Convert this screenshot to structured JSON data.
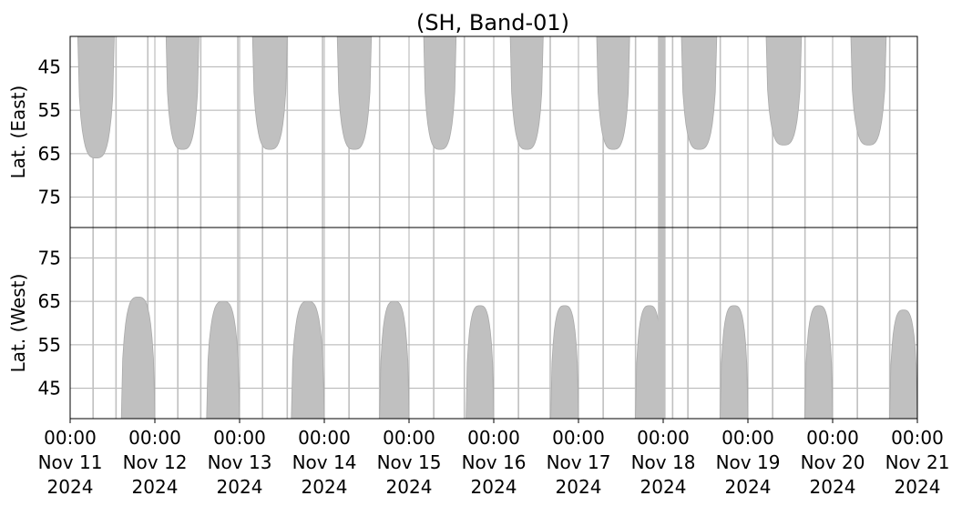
{
  "chart_data": {
    "type": "area",
    "title": "(SH, Band-01)",
    "fill_color": "#c0c0c0",
    "grid_color": "#b0b0b0",
    "grid": true,
    "x_range": [
      "2024-11-11 00:00",
      "2024-11-21 00:00"
    ],
    "x_ticks": [
      {
        "time": "00:00",
        "date": "Nov 11",
        "year": "2024"
      },
      {
        "time": "00:00",
        "date": "Nov 12",
        "year": "2024"
      },
      {
        "time": "00:00",
        "date": "Nov 13",
        "year": "2024"
      },
      {
        "time": "00:00",
        "date": "Nov 14",
        "year": "2024"
      },
      {
        "time": "00:00",
        "date": "Nov 15",
        "year": "2024"
      },
      {
        "time": "00:00",
        "date": "Nov 16",
        "year": "2024"
      },
      {
        "time": "00:00",
        "date": "Nov 17",
        "year": "2024"
      },
      {
        "time": "00:00",
        "date": "Nov 18",
        "year": "2024"
      },
      {
        "time": "00:00",
        "date": "Nov 19",
        "year": "2024"
      },
      {
        "time": "00:00",
        "date": "Nov 20",
        "year": "2024"
      },
      {
        "time": "00:00",
        "date": "Nov 21",
        "year": "2024"
      }
    ],
    "panels": [
      {
        "name": "east",
        "ylabel": "Lat. (East)",
        "yticks": [
          45,
          55,
          65,
          75
        ],
        "ylim": [
          38,
          82
        ],
        "inverted": true,
        "coverage": [
          {
            "start": "2024-11-11 02:10",
            "end": "2024-11-11 12:30",
            "max_lat": 66
          },
          {
            "start": "2024-11-12 03:10",
            "end": "2024-11-12 12:30",
            "max_lat": 64
          },
          {
            "start": "2024-11-13 03:40",
            "end": "2024-11-13 13:30",
            "max_lat": 64
          },
          {
            "start": "2024-11-14 03:40",
            "end": "2024-11-14 13:20",
            "max_lat": 64
          },
          {
            "start": "2024-11-15 04:10",
            "end": "2024-11-15 13:20",
            "max_lat": 64
          },
          {
            "start": "2024-11-16 04:40",
            "end": "2024-11-16 14:00",
            "max_lat": 64
          },
          {
            "start": "2024-11-17 05:10",
            "end": "2024-11-17 14:30",
            "max_lat": 64
          },
          {
            "start": "2024-11-18 05:10",
            "end": "2024-11-18 15:10",
            "max_lat": 64
          },
          {
            "start": "2024-11-19 05:10",
            "end": "2024-11-19 15:10",
            "max_lat": 63
          },
          {
            "start": "2024-11-20 05:10",
            "end": "2024-11-20 15:10",
            "max_lat": 63
          }
        ]
      },
      {
        "name": "west",
        "ylabel": "Lat. (West)",
        "yticks": [
          45,
          55,
          65,
          75
        ],
        "ylim": [
          38,
          82
        ],
        "inverted": false,
        "coverage": [
          {
            "start": "2024-11-11 14:30",
            "end": "2024-11-12 00:00",
            "max_lat": 66
          },
          {
            "start": "2024-11-12 14:40",
            "end": "2024-11-13 00:00",
            "max_lat": 65
          },
          {
            "start": "2024-11-13 14:40",
            "end": "2024-11-14 00:00",
            "max_lat": 65
          },
          {
            "start": "2024-11-14 15:40",
            "end": "2024-11-15 00:00",
            "max_lat": 65
          },
          {
            "start": "2024-11-15 16:10",
            "end": "2024-11-16 00:00",
            "max_lat": 64
          },
          {
            "start": "2024-11-16 16:10",
            "end": "2024-11-17 00:00",
            "max_lat": 64
          },
          {
            "start": "2024-11-17 16:10",
            "end": "2024-11-18 00:00",
            "max_lat": 64
          },
          {
            "start": "2024-11-18 16:10",
            "end": "2024-11-19 00:00",
            "max_lat": 64
          },
          {
            "start": "2024-11-19 16:10",
            "end": "2024-11-20 00:00",
            "max_lat": 64
          },
          {
            "start": "2024-11-20 16:10",
            "end": "2024-11-21 00:00",
            "max_lat": 63
          }
        ]
      }
    ],
    "full_columns": [
      {
        "start": "2024-11-17 22:30",
        "end": "2024-11-18 00:40"
      }
    ],
    "vertical_markers": [
      "2024-11-11 06:30",
      "2024-11-11 13:00",
      "2024-11-11 22:00",
      "2024-11-12 06:30",
      "2024-11-12 13:00",
      "2024-11-12 23:30",
      "2024-11-13 06:30",
      "2024-11-13 13:30",
      "2024-11-13 23:30",
      "2024-11-14 07:00",
      "2024-11-14 15:40",
      "2024-11-15 07:00",
      "2024-11-15 15:40",
      "2024-11-16 07:00",
      "2024-11-16 16:00",
      "2024-11-17 07:00",
      "2024-11-17 16:10",
      "2024-11-18 02:40",
      "2024-11-18 07:00",
      "2024-11-18 16:10",
      "2024-11-19 07:00",
      "2024-11-19 16:10",
      "2024-11-20 07:00",
      "2024-11-20 16:10"
    ]
  }
}
